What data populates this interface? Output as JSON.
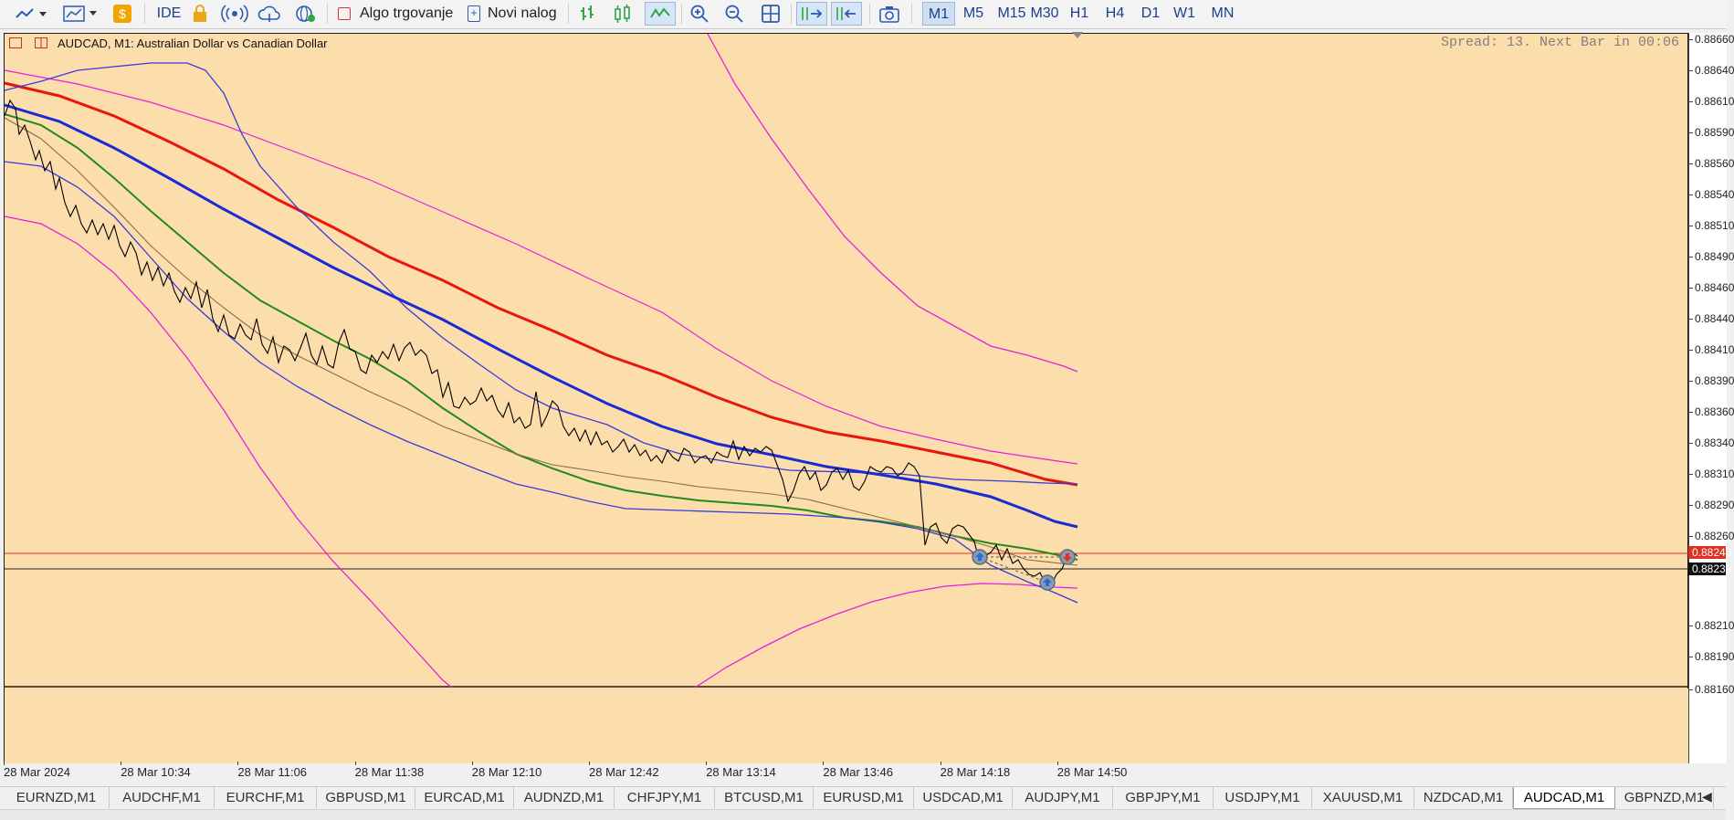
{
  "toolbar": {
    "icons": [
      "line-chart-icon",
      "chart-indicators-icon",
      "dollar-icon",
      "lock-icon",
      "signal-icon",
      "cloud-icon",
      "globe-icon"
    ],
    "ide_label": "IDE",
    "algo_label": "Algo trgovanje",
    "new_order_label": "Novi nalog",
    "timeframes": [
      "M1",
      "M5",
      "M15",
      "M30",
      "H1",
      "H4",
      "D1",
      "W1",
      "MN"
    ],
    "active_timeframe": "M1"
  },
  "chart": {
    "title": "AUDCAD, M1:  Australian Dollar vs Canadian Dollar",
    "spread_text": "Spread: 13. Next Bar in 00:06",
    "background_color": "#fcdeac",
    "price_labels": [
      "0.88660",
      "0.88640",
      "0.88610",
      "0.88590",
      "0.88560",
      "0.88540",
      "0.88510",
      "0.88490",
      "0.88460",
      "0.88440",
      "0.88410",
      "0.88390",
      "0.88360",
      "0.88340",
      "0.88310",
      "0.88290",
      "0.88260",
      "0.88240",
      "0.88230",
      "0.88210",
      "0.88190",
      "0.88160"
    ],
    "bid_tag": "0.88240",
    "ask_tag": "0.88230",
    "time_labels": [
      "28 Mar 2024",
      "28 Mar 10:34",
      "28 Mar 11:06",
      "28 Mar 11:38",
      "28 Mar 12:10",
      "28 Mar 12:42",
      "28 Mar 13:14",
      "28 Mar 13:46",
      "28 Mar 14:18",
      "28 Mar 14:50"
    ]
  },
  "colors": {
    "price_line": "#000000",
    "ma_red": "#e8170e",
    "ma_blue": "#1a2bd6",
    "ma_green": "#238a1c",
    "ma_thin": "#8a6a4a",
    "bands_blue": "#3a3ad8",
    "bands_magenta": "#e020e0",
    "bid_line": "#e03020",
    "ask_line": "#222222"
  },
  "symbol_tabs": [
    "EURNZD,M1",
    "AUDCHF,M1",
    "EURCHF,M1",
    "GBPUSD,M1",
    "EURCAD,M1",
    "AUDNZD,M1",
    "CHFJPY,M1",
    "BTCUSD,M1",
    "EURUSD,M1",
    "USDCAD,M1",
    "AUDJPY,M1",
    "GBPJPY,M1",
    "USDJPY,M1",
    "XAUUSD,M1",
    "NZDCAD,M1",
    "AUDCAD,M1",
    "GBPNZD,M1"
  ],
  "active_tab": "AUDCAD,M1"
}
